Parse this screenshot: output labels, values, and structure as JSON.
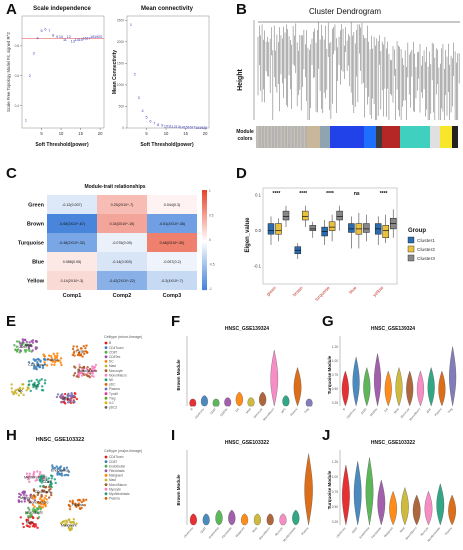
{
  "panels": {
    "A": {
      "letter": "A"
    },
    "B": {
      "letter": "B"
    },
    "C": {
      "letter": "C"
    },
    "D": {
      "letter": "D"
    },
    "E": {
      "letter": "E"
    },
    "F": {
      "letter": "F"
    },
    "G": {
      "letter": "G"
    },
    "H": {
      "letter": "H"
    },
    "I": {
      "letter": "I"
    },
    "J": {
      "letter": "J"
    }
  },
  "text": {
    "a1_title": "Scale independence",
    "a1_ylabel": "Scale Free Topology Model Fit, signed R^2",
    "a1_xlabel": "Soft Threshold(power)",
    "a2_title": "Mean connectivity",
    "a2_ylabel": "Mean Connectivity",
    "a2_xlabel": "Soft Threshold(power)",
    "b_title": "Cluster Dendrogram",
    "b_ylabel": "Height",
    "b_module_l1": "Module",
    "b_module_l2": "colors",
    "c_title": "Module-trait relationships",
    "d_ylabel": "Eigen_value",
    "d_legend_title": "Group",
    "e_celltype_title": "Celltype (minor-lineage)",
    "f_title": "HNSC_GSE139324",
    "f_ylabel": "Brown Module",
    "g_title": "HNSC_GSE139324",
    "g_ylabel": "Turquoise Module",
    "h_title": "HNSC_GSE103322",
    "h_celltype_title": "Celltype (major-lineage)",
    "i_title": "HNSC_GSE103322",
    "i_ylabel": "Brown Module",
    "j_title": "HNSC_GSE103322",
    "j_ylabel": "Turquoise Module"
  },
  "chart_data": [
    {
      "id": "A-scale-independence",
      "type": "scatter",
      "title": "Scale independence",
      "xlabel": "Soft Threshold(power)",
      "ylabel": "Scale Free Topology Model Fit, signed R^2",
      "xlim": [
        0,
        21
      ],
      "ylim": [
        0.25,
        1.0
      ],
      "x_ticks": [
        5,
        10,
        15,
        20
      ],
      "y_ticks": [
        0.4,
        0.6,
        0.8
      ],
      "x": [
        1,
        2,
        3,
        4,
        5,
        6,
        7,
        8,
        9,
        10,
        11,
        12,
        13,
        14,
        15,
        16,
        17,
        18,
        19,
        20
      ],
      "y": [
        0.3,
        0.6,
        0.75,
        0.85,
        0.9,
        0.91,
        0.9,
        0.87,
        0.86,
        0.86,
        0.84,
        0.86,
        0.83,
        0.84,
        0.84,
        0.85,
        0.85,
        0.86,
        0.86,
        0.86
      ],
      "point_labels": [
        "1",
        "2",
        "3",
        "4",
        "5",
        "6",
        "7",
        "8",
        "9",
        "10",
        "11",
        "12",
        "13",
        "14",
        "15",
        "16",
        "17",
        "18",
        "19",
        "20"
      ],
      "hline": 0.85,
      "marker_color": "#3a3ab8",
      "hline_color": "#e24444"
    },
    {
      "id": "A-mean-connectivity",
      "type": "scatter",
      "title": "Mean connectivity",
      "xlabel": "Soft Threshold(power)",
      "ylabel": "Mean Connectivity",
      "xlim": [
        0,
        21
      ],
      "ylim": [
        0,
        2600
      ],
      "x_ticks": [
        5,
        10,
        15,
        20
      ],
      "y_ticks": [
        0,
        500,
        1000,
        1500,
        2000,
        2500
      ],
      "x": [
        1,
        2,
        3,
        4,
        5,
        6,
        7,
        8,
        9,
        10,
        11,
        12,
        13,
        14,
        15,
        16,
        17,
        18,
        19,
        20
      ],
      "y": [
        2400,
        1250,
        700,
        400,
        250,
        160,
        110,
        80,
        60,
        45,
        35,
        28,
        23,
        19,
        16,
        14,
        12,
        10,
        9,
        8
      ],
      "point_labels": [
        "1",
        "2",
        "3",
        "4",
        "5",
        "6",
        "7",
        "8",
        "9",
        "10",
        "11",
        "12",
        "13",
        "14",
        "15",
        "16",
        "17",
        "18",
        "19",
        "20"
      ],
      "marker_color": "#3a3ab8"
    },
    {
      "id": "C-module-trait",
      "type": "heatmap",
      "title": "Module-trait relationships",
      "rows": [
        "Green",
        "Brown",
        "Turquoise",
        "Blue",
        "Yellow"
      ],
      "cols": [
        "Comp1",
        "Comp2",
        "Comp3"
      ],
      "values": [
        [
          -0.12,
          0.25,
          0.044
        ],
        [
          -0.65,
          0.34,
          -0.51
        ],
        [
          -0.48,
          -0.076,
          0.48
        ],
        [
          0.088,
          -0.14,
          -0.057
        ],
        [
          0.14,
          -0.42,
          -0.2
        ]
      ],
      "labels": [
        [
          "-0.12(0.007)",
          "0.25(2X10^-7)",
          "0.044(0.3)"
        ],
        [
          "-0.65(3X10^-67)",
          "0.34(3X10^-15)",
          "-0.51(4X10^-38)"
        ],
        [
          "-0.48(2X10^-32)",
          "-0.076(0.09)",
          "0.48(2X10^-30)"
        ],
        [
          "0.088(0.05)",
          "-0.14(0.003)",
          "-0.057(0.2)"
        ],
        [
          "0.14(2X10^-3)",
          "-0.42(2X10^-22)",
          "-0.2(4X10^-7)"
        ]
      ],
      "scale_ticks": [
        "1",
        "0.5",
        "0",
        "-0.5",
        "-1"
      ],
      "colors": {
        "neg": "#3b7dd8",
        "pos": "#e8462c",
        "mid": "#ffffff"
      }
    },
    {
      "id": "D-eigen-box",
      "type": "box",
      "ylabel": "Eigen_value",
      "ylim": [
        -0.15,
        0.12
      ],
      "y_ticks": [
        -0.1,
        0.0,
        0.1
      ],
      "categories": [
        "green",
        "brown",
        "turquoise",
        "blue",
        "yellow"
      ],
      "significance": [
        "****",
        "****",
        "****",
        "ns",
        "****"
      ],
      "series": [
        {
          "name": "Cluster1",
          "color": "#2b6cb0",
          "boxes": [
            [
              -0.04,
              -0.01,
              0.0,
              0.02,
              0.04
            ],
            [
              -0.08,
              -0.065,
              -0.055,
              -0.045,
              -0.035
            ],
            [
              -0.04,
              -0.015,
              -0.002,
              0.01,
              0.03
            ],
            [
              -0.05,
              -0.005,
              0.005,
              0.02,
              0.04
            ],
            [
              -0.04,
              -0.01,
              0.005,
              0.02,
              0.04
            ]
          ]
        },
        {
          "name": "Cluster2",
          "color": "#e9c13e",
          "boxes": [
            [
              -0.03,
              -0.01,
              0.0,
              0.02,
              0.035
            ],
            [
              0.01,
              0.03,
              0.04,
              0.055,
              0.07
            ],
            [
              -0.03,
              0.0,
              0.01,
              0.025,
              0.045
            ],
            [
              -0.05,
              -0.01,
              0.005,
              0.02,
              0.05
            ],
            [
              -0.035,
              -0.02,
              0.0,
              0.015,
              0.045
            ]
          ]
        },
        {
          "name": "Cluster3",
          "color": "#888888",
          "boxes": [
            [
              0.01,
              0.03,
              0.04,
              0.055,
              0.07
            ],
            [
              -0.02,
              0.0,
              0.005,
              0.015,
              0.025
            ],
            [
              0.0,
              0.03,
              0.04,
              0.055,
              0.07
            ],
            [
              -0.03,
              -0.005,
              0.005,
              0.02,
              0.045
            ],
            [
              -0.02,
              0.005,
              0.02,
              0.035,
              0.06
            ]
          ]
        }
      ],
      "legend_title": "Group"
    },
    {
      "id": "F-violin",
      "type": "violin",
      "title": "HNSC_GSE139324",
      "ylabel": "Brown Module",
      "categories": [
        "B",
        "CD4Tconv",
        "CD8T",
        "CD8Tex",
        "DC",
        "Mast",
        "Monocyte",
        "Mono/Macro",
        "pDC",
        "Plasma",
        "Treg"
      ],
      "levels": [
        0.1,
        0.15,
        0.1,
        0.12,
        0.2,
        0.12,
        0.2,
        0.8,
        0.15,
        0.55,
        0.1
      ]
    },
    {
      "id": "G-violin",
      "type": "violin",
      "title": "HNSC_GSE139324",
      "ylabel": "Turquoise Module",
      "y_ticks": [
        "0.25",
        "0.50",
        "0.75",
        "1.00",
        "1.25"
      ],
      "categories": [
        "B",
        "CD4Tconv",
        "CD8T",
        "CD8Tex",
        "DC",
        "Mast",
        "Monocyte",
        "Mono/Macro",
        "pDC",
        "Plasma",
        "Treg"
      ],
      "levels": [
        0.5,
        0.7,
        0.55,
        0.75,
        0.5,
        0.55,
        0.5,
        0.5,
        0.55,
        0.5,
        0.85
      ]
    },
    {
      "id": "I-violin",
      "type": "violin",
      "title": "HNSC_GSE103322",
      "ylabel": "Brown Module",
      "categories": [
        "CD4Tconv",
        "CD8T",
        "Endothelial",
        "Fibroblasts",
        "Malignant",
        "Mast",
        "Mono/Macro",
        "Myocyte",
        "Myofibroblasts",
        "Plasma"
      ],
      "levels": [
        0.15,
        0.15,
        0.2,
        0.2,
        0.15,
        0.15,
        0.15,
        0.15,
        0.2,
        0.95
      ]
    },
    {
      "id": "J-violin",
      "type": "violin",
      "title": "HNSC_GSE103322",
      "ylabel": "Turquoise Module",
      "y_ticks": [
        "0.25",
        "0.50",
        "0.75",
        "1.00",
        "1.25"
      ],
      "categories": [
        "CD4Tconv",
        "CD8T",
        "Endothelial",
        "Fibroblasts",
        "Malignant",
        "Mast",
        "Mono/Macro",
        "Myocyte",
        "Myofibroblasts",
        "Plasma"
      ],
      "levels": [
        0.8,
        0.85,
        0.9,
        0.6,
        0.45,
        0.5,
        0.4,
        0.45,
        0.55,
        0.4
      ]
    }
  ],
  "umap_legends": {
    "E": [
      "B",
      "CD4Tconv",
      "CD8T",
      "CD8Tex",
      "DC",
      "Mast",
      "Monocyte",
      "Mono/Macro",
      "NK",
      "pDC",
      "Plasma",
      "Tprolif",
      "Treg",
      "ILC",
      "pDC2"
    ],
    "H": [
      "CD4Tconv",
      "CD8T",
      "Endothelial",
      "Fibroblasts",
      "Malignant",
      "Mast",
      "Mono/Macro",
      "Myocyte",
      "Myofibroblasts",
      "Plasma"
    ]
  },
  "umap_labels": {
    "E": [
      "B",
      "CD4Tconv",
      "CD8T",
      "Mast",
      "Plasma",
      "NK",
      "DC",
      "Mono/Macro",
      "ILC",
      "Treg",
      "pDC"
    ],
    "H": [
      "Mast",
      "Endothelial",
      "Fibroblasts",
      "Myocyte",
      "Mono/Macro",
      "Malignant",
      "CD4Tconv",
      "Myofibroblasts",
      "CD8T",
      "Plasma"
    ]
  },
  "colors": {
    "module_strip": [
      "#bdbdbd",
      "#c9b79c",
      "#8fa3b1",
      "#2142e8",
      "#1f6fff",
      "#3b3b3b",
      "#b52727",
      "#40d0c0",
      "#e0e0e0",
      "#f7e62a",
      "#222222"
    ],
    "palette": [
      "#e41a1c",
      "#377eb8",
      "#4daf4a",
      "#984ea3",
      "#ff7f00",
      "#c9b32a",
      "#a65628",
      "#f781bf",
      "#1b9e77",
      "#d95f02",
      "#7570b3",
      "#e7298a",
      "#66a61e",
      "#e6ab02",
      "#666666"
    ]
  }
}
